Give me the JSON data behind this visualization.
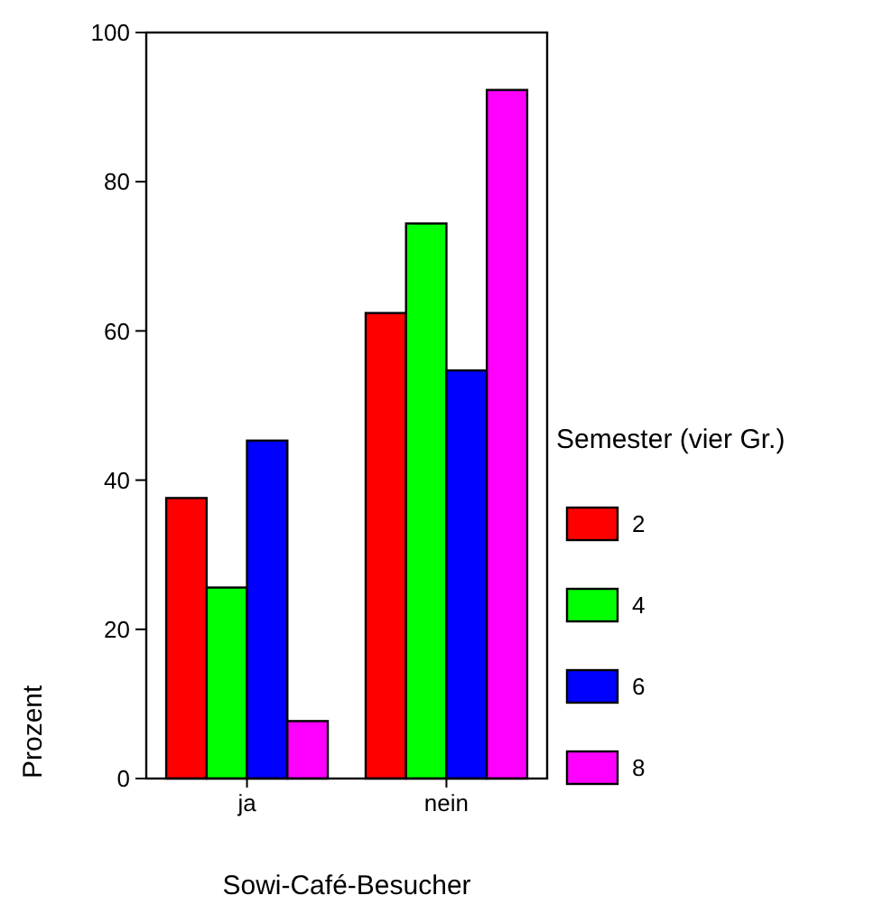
{
  "chart_data": {
    "type": "bar",
    "xlabel": "Sowi-Café-Besucher",
    "ylabel": "Prozent",
    "legend_title": "Semester (vier Gr.)",
    "categories": [
      "ja",
      "nein"
    ],
    "series": [
      {
        "name": "2",
        "color": "#ff0000",
        "values": [
          37.6,
          62.4
        ]
      },
      {
        "name": "4",
        "color": "#00ff00",
        "values": [
          25.6,
          74.4
        ]
      },
      {
        "name": "6",
        "color": "#0000ff",
        "values": [
          45.3,
          54.7
        ]
      },
      {
        "name": "8",
        "color": "#ff00ff",
        "values": [
          7.7,
          92.3
        ]
      }
    ],
    "ylim": [
      0,
      100
    ],
    "yticks": [
      0,
      20,
      40,
      60,
      80,
      100
    ],
    "legend": "right",
    "grid": false
  }
}
